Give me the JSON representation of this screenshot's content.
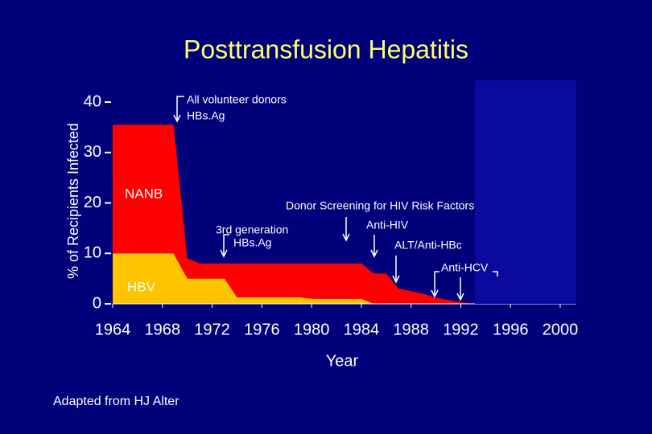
{
  "chart_data": {
    "type": "area",
    "title": "Posttransfusion Hepatitis",
    "x_label": "Year",
    "y_label": "% of Recipients Infected",
    "source": "Adapted from HJ Alter",
    "x": [
      1964,
      1968.9,
      1970,
      1971,
      1973,
      1974,
      1979,
      1980,
      1984,
      1985,
      1986,
      1987,
      1989,
      1990,
      1992,
      1993
    ],
    "series": [
      {
        "name": "HBV",
        "color": "#ffc400",
        "values": [
          10,
          10,
          5,
          5,
          5,
          1.3,
          1.3,
          1,
          1,
          0,
          0,
          0,
          0,
          0,
          0,
          0
        ]
      },
      {
        "name": "NANB",
        "color": "#ff0000",
        "values": [
          25.5,
          25.5,
          4,
          3,
          3,
          6.7,
          6.7,
          7,
          7,
          6,
          6,
          3,
          2,
          1.2,
          0.3,
          0
        ]
      }
    ],
    "stacked": true,
    "xlim": [
      1964,
      2000
    ],
    "xticks": [
      1964,
      1968,
      1972,
      1976,
      1980,
      1984,
      1988,
      1992,
      1996,
      2000
    ],
    "ylim": [
      0,
      40
    ],
    "yticks": [
      0,
      10,
      20,
      30,
      40
    ],
    "annotations": [
      "All volunteer donors",
      "HBs.Ag",
      "Donor Screening for HIV Risk Factors",
      "3rd generation",
      "HBs.Ag",
      "Anti-HIV",
      "ALT/Anti-HBc",
      "Anti-HCV"
    ]
  }
}
